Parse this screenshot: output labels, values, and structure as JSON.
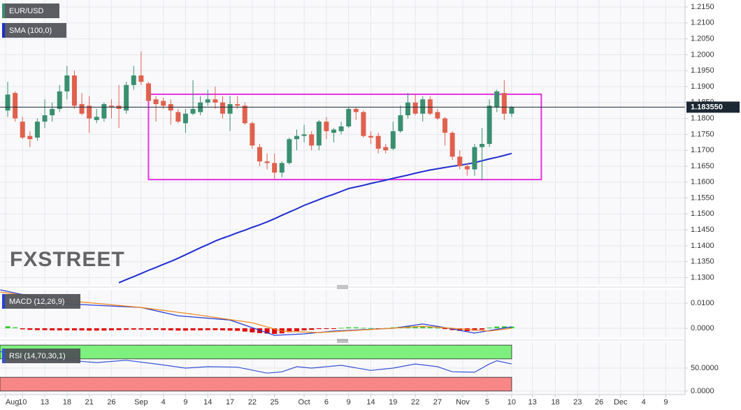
{
  "chart_data": [
    {
      "type": "candlestick",
      "title": "EUR/USD",
      "colors": {
        "up": "#3a8f6f",
        "down": "#e0604e"
      },
      "xlim": [
        -1.04,
        91.4
      ],
      "ylim": [
        1.1277,
        1.2172
      ],
      "yticks": [
        {
          "value": 1.215,
          "label": "1.2150"
        },
        {
          "value": 1.21,
          "label": "1.2100"
        },
        {
          "value": 1.205,
          "label": "1.2050"
        },
        {
          "value": 1.2,
          "label": "1.2000"
        },
        {
          "value": 1.195,
          "label": "1.1950"
        },
        {
          "value": 1.19,
          "label": "1.1900"
        },
        {
          "value": 1.185,
          "label": "1.1850"
        },
        {
          "value": 1.18,
          "label": "1.1800"
        },
        {
          "value": 1.175,
          "label": "1.1750"
        },
        {
          "value": 1.17,
          "label": "1.1700"
        },
        {
          "value": 1.165,
          "label": "1.1650"
        },
        {
          "value": 1.16,
          "label": "1.1600"
        },
        {
          "value": 1.155,
          "label": "1.1550"
        },
        {
          "value": 1.15,
          "label": "1.1500"
        },
        {
          "value": 1.145,
          "label": "1.1450"
        },
        {
          "value": 1.14,
          "label": "1.1400"
        },
        {
          "value": 1.135,
          "label": "1.1350"
        },
        {
          "value": 1.13,
          "label": "1.1300"
        }
      ],
      "grid": true,
      "open": [
        1.1825,
        1.188,
        1.179,
        1.1745,
        1.174,
        1.179,
        1.181,
        1.183,
        1.1885,
        1.1935,
        1.1845,
        1.184,
        1.1795,
        1.18,
        1.184,
        1.184,
        1.1825,
        1.1905,
        1.1935,
        1.191,
        1.186,
        1.1855,
        1.1845,
        1.182,
        1.1785,
        1.1815,
        1.182,
        1.185,
        1.186,
        1.185,
        1.1815,
        1.1845,
        1.184,
        1.1785,
        1.171,
        1.1665,
        1.166,
        1.163,
        1.166,
        1.1735,
        1.1745,
        1.175,
        1.1715,
        1.179,
        1.1755,
        1.176,
        1.1775,
        1.183,
        1.182,
        1.1745,
        1.1745,
        1.171,
        1.1705,
        1.176,
        1.181,
        1.185,
        1.1815,
        1.186,
        1.182,
        1.18,
        1.1755,
        1.168,
        1.165,
        1.164,
        1.171,
        1.172,
        1.1835,
        1.188,
        1.1815
      ],
      "high": [
        1.1915,
        1.1885,
        1.1805,
        1.176,
        1.18,
        1.186,
        1.185,
        1.1905,
        1.1965,
        1.195,
        1.188,
        1.187,
        1.183,
        1.185,
        1.186,
        1.1905,
        1.1915,
        1.1965,
        1.201,
        1.1915,
        1.187,
        1.1865,
        1.186,
        1.183,
        1.183,
        1.192,
        1.187,
        1.189,
        1.19,
        1.187,
        1.187,
        1.187,
        1.185,
        1.179,
        1.172,
        1.169,
        1.169,
        1.1665,
        1.174,
        1.1765,
        1.178,
        1.176,
        1.1795,
        1.1805,
        1.177,
        1.179,
        1.1835,
        1.1835,
        1.1825,
        1.176,
        1.1755,
        1.172,
        1.179,
        1.184,
        1.188,
        1.1875,
        1.187,
        1.187,
        1.183,
        1.1805,
        1.176,
        1.17,
        1.166,
        1.172,
        1.177,
        1.186,
        1.189,
        1.192,
        1.184
      ],
      "low": [
        1.1805,
        1.179,
        1.1735,
        1.171,
        1.173,
        1.177,
        1.179,
        1.182,
        1.186,
        1.183,
        1.181,
        1.1755,
        1.1785,
        1.179,
        1.18,
        1.177,
        1.1815,
        1.189,
        1.1905,
        1.185,
        1.179,
        1.183,
        1.178,
        1.1785,
        1.1755,
        1.181,
        1.181,
        1.184,
        1.183,
        1.18,
        1.176,
        1.183,
        1.178,
        1.1705,
        1.165,
        1.164,
        1.161,
        1.1615,
        1.1655,
        1.17,
        1.1725,
        1.17,
        1.17,
        1.1735,
        1.1725,
        1.175,
        1.177,
        1.1795,
        1.174,
        1.172,
        1.169,
        1.169,
        1.17,
        1.1755,
        1.18,
        1.181,
        1.179,
        1.181,
        1.1795,
        1.1715,
        1.167,
        1.164,
        1.162,
        1.162,
        1.1605,
        1.171,
        1.182,
        1.1795,
        1.1805
      ],
      "close": [
        1.1875,
        1.18,
        1.174,
        1.1735,
        1.179,
        1.181,
        1.183,
        1.1885,
        1.1935,
        1.184,
        1.1815,
        1.18,
        1.1805,
        1.1845,
        1.1835,
        1.183,
        1.1905,
        1.1935,
        1.1915,
        1.1855,
        1.1845,
        1.184,
        1.1825,
        1.179,
        1.1815,
        1.183,
        1.185,
        1.186,
        1.185,
        1.1815,
        1.1845,
        1.184,
        1.1785,
        1.1715,
        1.1665,
        1.166,
        1.163,
        1.166,
        1.1735,
        1.1745,
        1.175,
        1.1715,
        1.179,
        1.176,
        1.1765,
        1.1775,
        1.183,
        1.182,
        1.1745,
        1.174,
        1.1705,
        1.17,
        1.176,
        1.181,
        1.185,
        1.1815,
        1.186,
        1.1815,
        1.18,
        1.1755,
        1.168,
        1.165,
        1.164,
        1.171,
        1.172,
        1.184,
        1.1885,
        1.1815,
        1.1835
      ],
      "overlays": [
        {
          "name": "SMA (100,0)",
          "color": "#1f2ecf",
          "values": [
            null,
            null,
            null,
            null,
            null,
            null,
            null,
            null,
            null,
            null,
            null,
            null,
            null,
            null,
            null,
            1.1284,
            1.1294,
            1.1303,
            1.1313,
            1.1323,
            1.1332,
            1.1342,
            1.1351,
            1.1361,
            1.1372,
            1.1383,
            1.1394,
            1.1404,
            1.1415,
            1.1424,
            1.1432,
            1.1441,
            1.1449,
            1.1458,
            1.1466,
            1.1475,
            1.1485,
            1.1496,
            1.1506,
            1.1516,
            1.1527,
            1.1536,
            1.1545,
            1.1554,
            1.1562,
            1.1571,
            1.158,
            1.1585,
            1.159,
            1.1596,
            1.1601,
            1.1606,
            1.1612,
            1.1617,
            1.1622,
            1.1628,
            1.1633,
            1.1638,
            1.1642,
            1.1646,
            1.165,
            1.1653,
            1.1657,
            1.1661,
            1.1667,
            1.1673,
            1.1678,
            1.1684,
            1.169
          ]
        }
      ],
      "annotation": {
        "color": "#e632e0",
        "x": [
          19,
          72
        ],
        "y": [
          1.1608,
          1.1876
        ]
      },
      "last_price": 1.18355,
      "last_price_label": "1.183550",
      "watermark": "FXSTREET"
    },
    {
      "type": "macd",
      "title": "MACD (12,26,9)",
      "xlim": [
        -1.04,
        91.4
      ],
      "ylim": [
        -0.0036,
        0.0153
      ],
      "yticks": [
        {
          "value": 0.01,
          "label": "0.0100"
        },
        {
          "value": 0,
          "label": "0.0000"
        }
      ],
      "grid": true,
      "series": [
        {
          "color": "#2a3fd6",
          "x": [
            -1,
            8,
            18,
            23,
            30,
            36,
            40,
            44,
            52,
            56,
            59,
            63,
            68
          ],
          "values": [
            0.0153,
            0.0097,
            0.0083,
            0.005,
            0.0033,
            -0.0028,
            -0.0022,
            -0.0011,
            0.0,
            0.0017,
            0.0003,
            -0.0019,
            0.0006
          ]
        },
        {
          "color": "#f08a24",
          "x": [
            -1,
            8,
            18,
            25,
            33,
            37,
            42,
            50,
            56,
            60,
            65,
            68
          ],
          "values": [
            0.0144,
            0.011,
            0.0083,
            0.0056,
            0.0022,
            -0.0011,
            -0.0017,
            -0.0003,
            0.0008,
            0.0,
            -0.0011,
            0.0
          ]
        }
      ],
      "histogram": {
        "up_color": "#33cc33",
        "down_color": "#e00000",
        "values": [
          0.0008,
          0.0004,
          -0.0004,
          -0.0006,
          -0.0007,
          -0.0007,
          -0.0008,
          -0.0008,
          -0.0008,
          -0.0008,
          -0.0008,
          -0.0009,
          -0.0009,
          -0.0009,
          -0.0008,
          -0.0007,
          -0.0006,
          -0.0005,
          -0.0005,
          -0.0006,
          -0.0006,
          -0.0007,
          -0.0008,
          -0.0009,
          -0.0009,
          -0.0008,
          -0.0008,
          -0.0007,
          -0.0007,
          -0.0008,
          -0.0009,
          -0.001,
          -0.0013,
          -0.0016,
          -0.0019,
          -0.0021,
          -0.0022,
          -0.002,
          -0.0015,
          -0.0011,
          -0.0008,
          -0.0006,
          -0.0003,
          -0.0002,
          -0.0001,
          0.0002,
          0.0004,
          0.0004,
          0.0002,
          0.0001,
          -0.0001,
          0.0001,
          0.0004,
          0.0006,
          0.0008,
          0.0008,
          0.0007,
          0.0005,
          0.0002,
          -0.0003,
          -0.0007,
          -0.001,
          -0.0011,
          -0.0009,
          -0.0005,
          0.0003,
          0.0007,
          0.0008,
          0.0007
        ]
      }
    },
    {
      "type": "rsi",
      "title": "RSI (14,70,30,1)",
      "xlim": [
        -1.04,
        91.4
      ],
      "ylim": [
        -7.8,
        106.25
      ],
      "yticks": [
        {
          "value": 50,
          "label": "50.0000"
        },
        {
          "value": 0,
          "label": "0.0000"
        }
      ],
      "grid": true,
      "bands": [
        {
          "range": [
            70,
            100
          ],
          "color": "#7ef07e"
        },
        {
          "range": [
            0,
            30
          ],
          "color": "#f78787"
        }
      ],
      "series": [
        {
          "color": "#3552d4",
          "x": [
            -1,
            3,
            8,
            12,
            16,
            20,
            24,
            27,
            31,
            35,
            37,
            39,
            41,
            45,
            49,
            52,
            55,
            58,
            60,
            63,
            65,
            66,
            68
          ],
          "values": [
            86,
            70,
            67,
            62,
            67,
            59,
            50,
            53,
            52,
            39,
            42,
            53,
            50,
            56,
            45,
            50,
            59,
            53,
            42,
            41,
            59,
            66,
            59
          ]
        }
      ],
      "xticks": [
        {
          "value": -0.3,
          "label": "Aug"
        },
        {
          "value": 2,
          "label": "10"
        },
        {
          "value": 5,
          "label": "13"
        },
        {
          "value": 8,
          "label": "18"
        },
        {
          "value": 11,
          "label": "21"
        },
        {
          "value": 14,
          "label": "26"
        },
        {
          "value": 18,
          "label": "Sep"
        },
        {
          "value": 21,
          "label": "4"
        },
        {
          "value": 24,
          "label": "9"
        },
        {
          "value": 27,
          "label": "14"
        },
        {
          "value": 30,
          "label": "17"
        },
        {
          "value": 33,
          "label": "22"
        },
        {
          "value": 36,
          "label": "25"
        },
        {
          "value": 40,
          "label": "Oct"
        },
        {
          "value": 43,
          "label": "6"
        },
        {
          "value": 46,
          "label": "9"
        },
        {
          "value": 49,
          "label": "14"
        },
        {
          "value": 52,
          "label": "19"
        },
        {
          "value": 55,
          "label": "22"
        },
        {
          "value": 58,
          "label": "27"
        },
        {
          "value": 61.4,
          "label": "Nov"
        },
        {
          "value": 64.7,
          "label": "5"
        },
        {
          "value": 68,
          "label": "10"
        },
        {
          "value": 70.8,
          "label": "13"
        },
        {
          "value": 73.9,
          "label": "18"
        },
        {
          "value": 76.9,
          "label": "23"
        },
        {
          "value": 79.8,
          "label": "26"
        },
        {
          "value": 82.7,
          "label": "Dec"
        },
        {
          "value": 85.8,
          "label": "4"
        },
        {
          "value": 88.8,
          "label": "9"
        }
      ]
    }
  ]
}
